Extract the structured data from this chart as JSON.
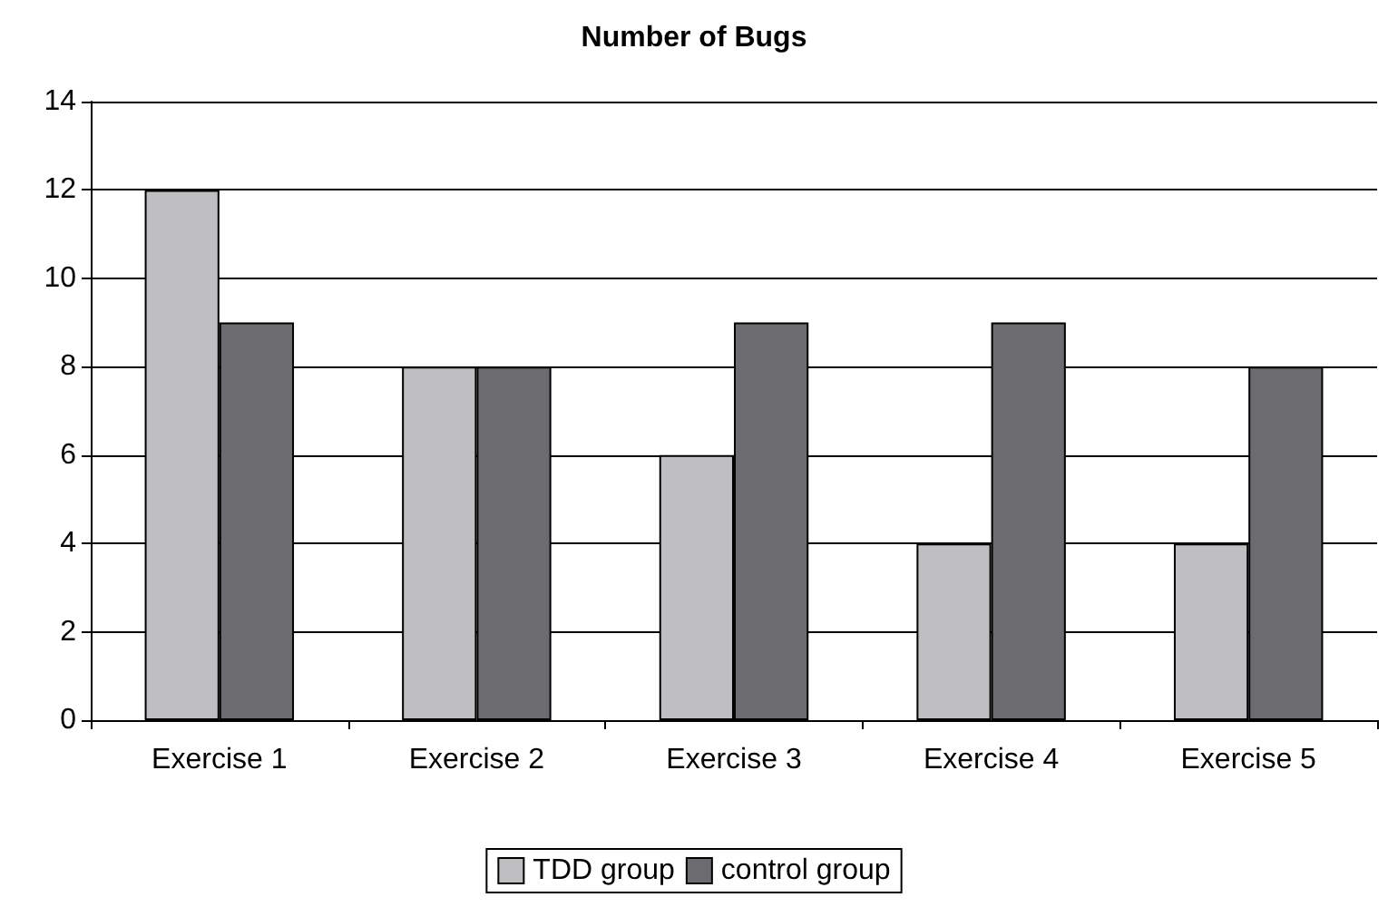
{
  "chart_data": {
    "type": "bar",
    "title": "Number of Bugs",
    "categories": [
      "Exercise 1",
      "Exercise 2",
      "Exercise 3",
      "Exercise 4",
      "Exercise 5"
    ],
    "series": [
      {
        "name": "TDD group",
        "color": "#bfbfc2",
        "values": [
          12,
          8,
          6,
          4,
          4
        ]
      },
      {
        "name": "control group",
        "color": "#6b6b70",
        "values": [
          9,
          8,
          9,
          9,
          8
        ]
      }
    ],
    "ylim": [
      0,
      14
    ],
    "yticks": [
      0,
      2,
      4,
      6,
      8,
      10,
      12,
      14
    ],
    "grid": "y",
    "legend": "bottom"
  }
}
